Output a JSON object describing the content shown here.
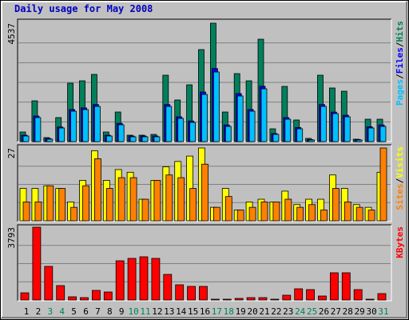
{
  "chart_data": [
    {
      "type": "bar",
      "title": "Daily usage for May 2008",
      "ylim": [
        0,
        4537
      ],
      "yticks": [
        4537
      ],
      "grid_divisions": 6,
      "legend_separator": "/",
      "series": [
        {
          "name": "Hits",
          "color": "#00805c",
          "values": [
            368,
            1563,
            153,
            920,
            2237,
            2329,
            2575,
            368,
            1134,
            245,
            245,
            276,
            2544,
            1594,
            2176,
            3525,
            4537,
            1134,
            2605,
            2329,
            3923,
            490,
            2115,
            828,
            123,
            2544,
            2054,
            1931,
            92,
            858,
            858
          ]
        },
        {
          "name": "Files",
          "color": "#0000ff",
          "values": [
            245,
            980,
            120,
            560,
            1230,
            1290,
            1420,
            245,
            700,
            215,
            215,
            215,
            1420,
            950,
            790,
            1900,
            2800,
            640,
            1840,
            1230,
            2120,
            310,
            920,
            540,
            80,
            1420,
            1130,
            1010,
            80,
            570,
            640
          ]
        },
        {
          "name": "Pages",
          "color": "#00c0ff",
          "values": [
            215,
            920,
            92,
            521,
            1165,
            1226,
            1349,
            215,
            644,
            184,
            184,
            184,
            1349,
            889,
            736,
            1808,
            2667,
            582,
            1747,
            1165,
            2023,
            276,
            858,
            490,
            61,
            1349,
            1073,
            950,
            61,
            521,
            582
          ]
        }
      ]
    },
    {
      "type": "bar",
      "ylim": [
        0,
        27
      ],
      "yticks": [
        27
      ],
      "grid_divisions": 4,
      "legend_separator": "/",
      "series": [
        {
          "name": "Visits",
          "color": "#ffff00",
          "values": [
            12,
            12,
            13,
            12,
            7,
            15,
            26,
            15,
            19,
            18,
            8,
            15,
            20,
            22,
            24,
            27,
            5,
            12,
            4,
            7,
            8,
            7,
            11,
            6,
            8,
            8,
            17,
            12,
            6,
            5,
            18
          ]
        },
        {
          "name": "Sites",
          "color": "#ff8000",
          "values": [
            7,
            7,
            13,
            12,
            5,
            13,
            23,
            12,
            16,
            16,
            8,
            15,
            17,
            16,
            12,
            21,
            5,
            9,
            4,
            5,
            7,
            7,
            8,
            5,
            6,
            4,
            12,
            7,
            5,
            4,
            27
          ]
        }
      ]
    },
    {
      "type": "bar",
      "ylim": [
        0,
        3793
      ],
      "yticks": [
        3793
      ],
      "grid_divisions": 4,
      "categories": [
        "1",
        "2",
        "3",
        "4",
        "5",
        "6",
        "7",
        "8",
        "9",
        "10",
        "11",
        "12",
        "13",
        "14",
        "15",
        "16",
        "17",
        "18",
        "19",
        "20",
        "21",
        "22",
        "23",
        "24",
        "25",
        "26",
        "27",
        "28",
        "29",
        "30",
        "31"
      ],
      "label_colors": [
        "#000000",
        "#000000",
        "#00805c",
        "#00805c",
        "#000000",
        "#000000",
        "#000000",
        "#000000",
        "#000000",
        "#00805c",
        "#00805c",
        "#000000",
        "#000000",
        "#000000",
        "#000000",
        "#000000",
        "#00805c",
        "#00805c",
        "#000000",
        "#000000",
        "#000000",
        "#000000",
        "#000000",
        "#00805c",
        "#00805c",
        "#000000",
        "#000000",
        "#000000",
        "#000000",
        "#000000",
        "#00805c"
      ],
      "series": [
        {
          "name": "KBytes",
          "color": "#ff0000",
          "values": [
            375,
            3793,
            1751,
            750,
            167,
            125,
            500,
            417,
            2043,
            2168,
            2251,
            2168,
            1334,
            792,
            709,
            709,
            42,
            42,
            83,
            125,
            125,
            42,
            250,
            584,
            542,
            208,
            1418,
            1418,
            542,
            42,
            334
          ]
        }
      ]
    }
  ]
}
